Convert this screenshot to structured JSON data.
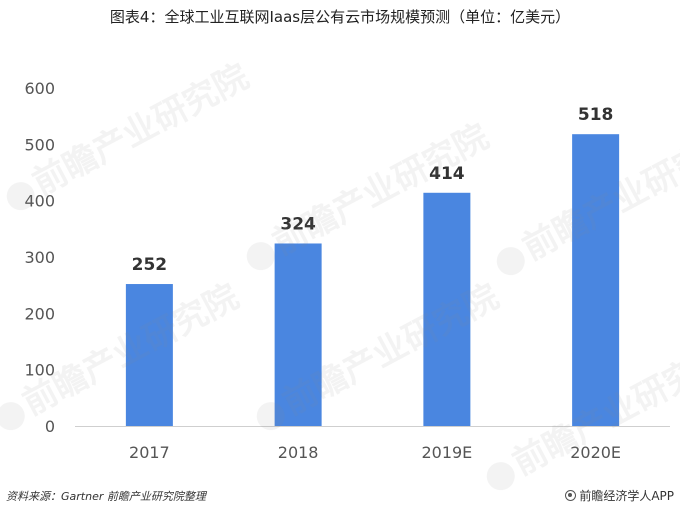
{
  "header": {
    "title": "图表4：全球工业互联网Iaas层公有云市场规模预测（单位：亿美元）"
  },
  "chart_data": {
    "type": "bar",
    "title": "图表4：全球工业互联网Iaas层公有云市场规模预测（单位：亿美元）",
    "categories": [
      "2017",
      "2018",
      "2019E",
      "2020E"
    ],
    "values": [
      252,
      324,
      414,
      518
    ],
    "ylim": [
      0,
      600
    ],
    "yticks": [
      0,
      100,
      200,
      300,
      400,
      500,
      600
    ],
    "xlabel": "",
    "ylabel": "",
    "grid": false,
    "bar_color": "#4a86e0",
    "data_labels": true
  },
  "footer": {
    "source": "资料来源：Gartner 前瞻产业研究院整理",
    "credit": "前瞻经济学人APP"
  },
  "watermark": {
    "text": "前瞻产业研究院"
  }
}
